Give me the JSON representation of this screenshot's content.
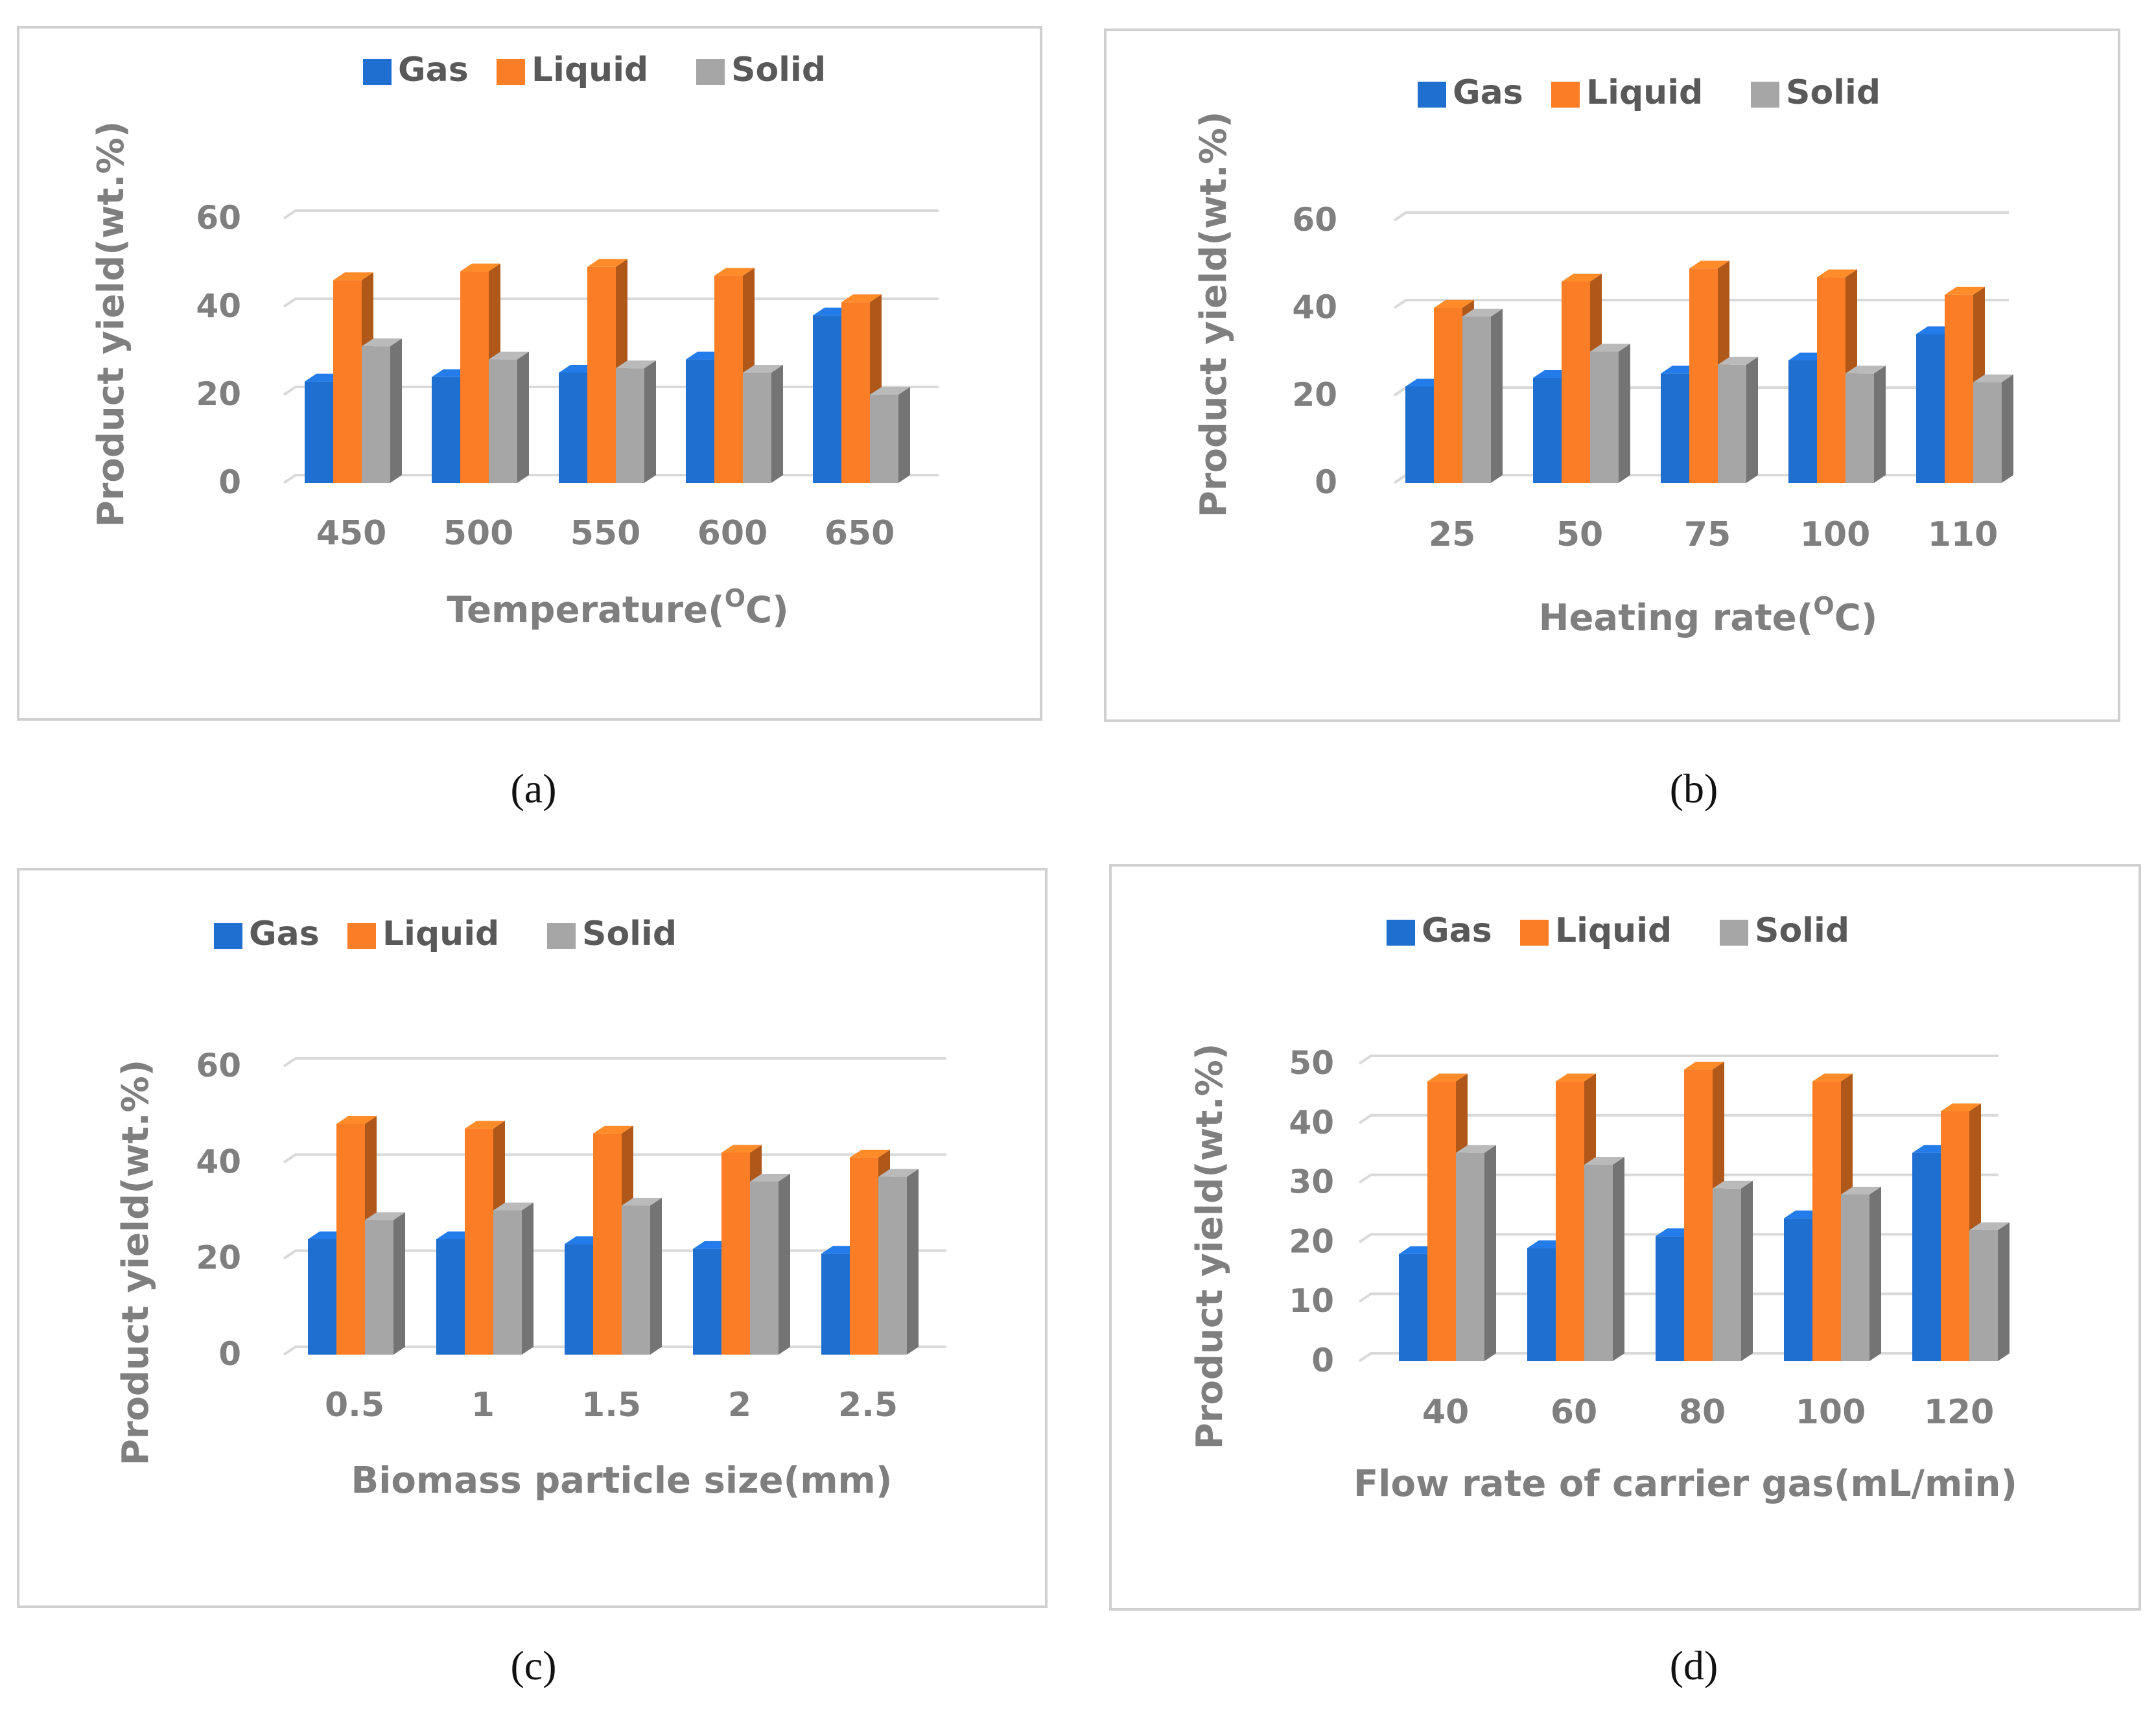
{
  "colors": {
    "gas": "#1f6fd0",
    "liquid": "#fb7d25",
    "solid": "#a6a6a6",
    "grid": "#d9d9d9",
    "text": "#7f7f7f",
    "border": "#d0d0d0"
  },
  "chart_data": [
    {
      "type": "bar",
      "panel_label": "(a)",
      "legend": [
        "Gas",
        "Liquid",
        "Solid"
      ],
      "categories": [
        "450",
        "500",
        "550",
        "600",
        "650"
      ],
      "series": [
        {
          "name": "Gas",
          "values": [
            23,
            24,
            25,
            28,
            38
          ]
        },
        {
          "name": "Liquid",
          "values": [
            46,
            48,
            49,
            47,
            41
          ]
        },
        {
          "name": "Solid",
          "values": [
            31,
            28,
            26,
            25,
            20
          ]
        }
      ],
      "ylabel": "Product yield(wt.%)",
      "xlabel_main": "Temperature(",
      "xlabel_sup": "O",
      "xlabel_tail": "C)",
      "ylim": [
        0,
        60
      ],
      "yticks": [
        0,
        20,
        40,
        60
      ],
      "legend_position": "top"
    },
    {
      "type": "bar",
      "panel_label": "(b)",
      "legend": [
        "Gas",
        "Liquid",
        "Solid"
      ],
      "categories": [
        "25",
        "50",
        "75",
        "100",
        "110"
      ],
      "series": [
        {
          "name": "Gas",
          "values": [
            22,
            24,
            25,
            28,
            34
          ]
        },
        {
          "name": "Liquid",
          "values": [
            40,
            46,
            49,
            47,
            43
          ]
        },
        {
          "name": "Solid",
          "values": [
            38,
            30,
            27,
            25,
            23
          ]
        }
      ],
      "ylabel": "Product yield(wt.%)",
      "xlabel_main": "Heating rate(",
      "xlabel_sup": "O",
      "xlabel_tail": "C)",
      "ylim": [
        0,
        60
      ],
      "yticks": [
        0,
        20,
        40,
        60
      ],
      "legend_position": "top"
    },
    {
      "type": "bar",
      "panel_label": "(c)",
      "legend": [
        "Gas",
        "Liquid",
        "Solid"
      ],
      "categories": [
        "0.5",
        "1",
        "1.5",
        "2",
        "2.5"
      ],
      "series": [
        {
          "name": "Gas",
          "values": [
            24,
            24,
            23,
            22,
            21
          ]
        },
        {
          "name": "Liquid",
          "values": [
            48,
            47,
            46,
            42,
            41
          ]
        },
        {
          "name": "Solid",
          "values": [
            28,
            30,
            31,
            36,
            37
          ]
        }
      ],
      "ylabel": "Product yield(wt.%)",
      "xlabel_main": "Biomass particle size(mm)",
      "xlabel_sup": "",
      "xlabel_tail": "",
      "ylim": [
        0,
        60
      ],
      "yticks": [
        0,
        20,
        40,
        60
      ],
      "legend_position": "top"
    },
    {
      "type": "bar",
      "panel_label": "(d)",
      "legend": [
        "Gas",
        "Liquid",
        "Solid"
      ],
      "categories": [
        "40",
        "60",
        "80",
        "100",
        "120"
      ],
      "series": [
        {
          "name": "Gas",
          "values": [
            18,
            19,
            21,
            24,
            35
          ]
        },
        {
          "name": "Liquid",
          "values": [
            47,
            47,
            49,
            47,
            42
          ]
        },
        {
          "name": "Solid",
          "values": [
            35,
            33,
            29,
            28,
            22
          ]
        }
      ],
      "ylabel": "Product yield(wt.%)",
      "xlabel_main": "Flow rate of carrier gas(mL/min)",
      "xlabel_sup": "",
      "xlabel_tail": "",
      "ylim": [
        0,
        50
      ],
      "yticks": [
        0,
        10,
        20,
        30,
        40,
        50
      ],
      "legend_position": "top"
    }
  ]
}
